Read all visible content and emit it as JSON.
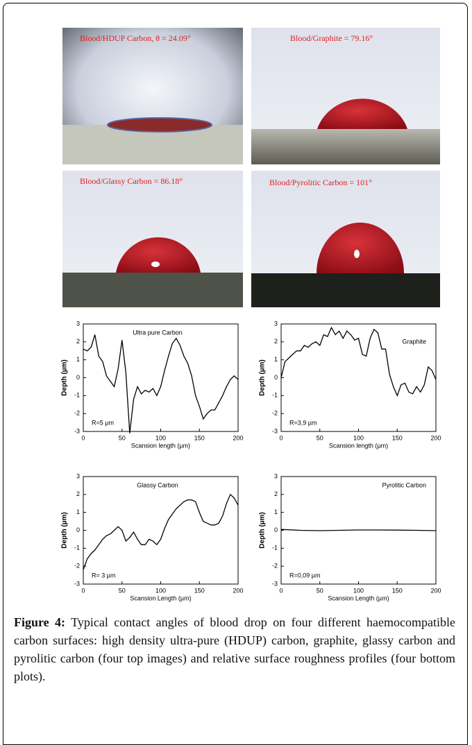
{
  "photos": [
    {
      "label": "Blood/HDUP Carbon, θ = 24.09°"
    },
    {
      "label": "Blood/Graphite = 79.16°"
    },
    {
      "label": "Blood/Glassy Carbon = 86.18°"
    },
    {
      "label": "Blood/Pyrolitic Carbon = 101°"
    }
  ],
  "chart_data": [
    {
      "type": "line",
      "title": "Ultra pure Carbon",
      "annotation": "R=5 µm",
      "y_label": "Depth (µm)",
      "x_label": "Scansion length (µm)",
      "xlim": [
        0,
        200
      ],
      "ylim": [
        -3,
        3
      ],
      "xticks": [
        0,
        50,
        100,
        150,
        200
      ],
      "yticks": [
        3,
        2,
        1,
        0,
        -1,
        -2,
        -3
      ],
      "color": "#000000",
      "x": [
        0,
        5,
        10,
        15,
        20,
        25,
        30,
        35,
        40,
        45,
        50,
        55,
        60,
        65,
        70,
        75,
        80,
        85,
        90,
        95,
        100,
        105,
        110,
        115,
        120,
        125,
        130,
        135,
        140,
        145,
        150,
        155,
        160,
        165,
        170,
        175,
        180,
        185,
        190,
        195,
        200
      ],
      "values": [
        1.6,
        1.5,
        1.7,
        2.4,
        1.2,
        0.9,
        0.1,
        -0.2,
        -0.5,
        0.5,
        2.1,
        0.3,
        -3.1,
        -1.2,
        -0.5,
        -0.9,
        -0.7,
        -0.8,
        -0.6,
        -1.0,
        -0.5,
        0.4,
        1.2,
        1.9,
        2.2,
        1.8,
        1.2,
        0.8,
        0.1,
        -1.0,
        -1.6,
        -2.3,
        -2.0,
        -1.8,
        -1.8,
        -1.4,
        -1.0,
        -0.5,
        -0.1,
        0.1,
        -0.1
      ]
    },
    {
      "type": "line",
      "title": "Graphite",
      "annotation": "R=3,9 µm",
      "y_label": "Depth (µm)",
      "x_label": "Scansion length (µm)",
      "xlim": [
        0,
        200
      ],
      "ylim": [
        -3,
        3
      ],
      "xticks": [
        0,
        50,
        100,
        150,
        200
      ],
      "yticks": [
        3,
        2,
        1,
        0,
        -1,
        -2,
        -3
      ],
      "color": "#000000",
      "x": [
        0,
        5,
        10,
        15,
        20,
        25,
        30,
        35,
        40,
        45,
        50,
        55,
        60,
        65,
        70,
        75,
        80,
        85,
        90,
        95,
        100,
        105,
        110,
        115,
        120,
        125,
        130,
        135,
        140,
        145,
        150,
        155,
        160,
        165,
        170,
        175,
        180,
        185,
        190,
        195,
        200
      ],
      "values": [
        0.0,
        0.9,
        1.1,
        1.3,
        1.5,
        1.5,
        1.8,
        1.7,
        1.9,
        2.0,
        1.8,
        2.4,
        2.3,
        2.8,
        2.4,
        2.6,
        2.2,
        2.6,
        2.4,
        2.1,
        2.2,
        1.3,
        1.2,
        2.2,
        2.7,
        2.5,
        1.6,
        1.6,
        0.2,
        -0.5,
        -1.0,
        -0.4,
        -0.3,
        -0.8,
        -0.9,
        -0.5,
        -0.8,
        -0.4,
        0.6,
        0.4,
        -0.1
      ]
    },
    {
      "type": "line",
      "title": "Glassy Carbon",
      "annotation": "R= 3 µm",
      "y_label": "Depth (µm)",
      "x_label": "Scansion Length (µm)",
      "xlim": [
        0,
        200
      ],
      "ylim": [
        -3,
        3
      ],
      "xticks": [
        0,
        50,
        100,
        150,
        200
      ],
      "yticks": [
        3,
        2,
        1,
        0,
        -1,
        -2,
        -3
      ],
      "color": "#000000",
      "x": [
        0,
        5,
        10,
        15,
        20,
        25,
        30,
        35,
        40,
        45,
        50,
        55,
        60,
        65,
        70,
        75,
        80,
        85,
        90,
        95,
        100,
        105,
        110,
        115,
        120,
        125,
        130,
        135,
        140,
        145,
        150,
        155,
        160,
        165,
        170,
        175,
        180,
        185,
        190,
        195,
        200
      ],
      "values": [
        -2.2,
        -1.6,
        -1.3,
        -1.1,
        -0.8,
        -0.5,
        -0.3,
        -0.2,
        0.0,
        0.2,
        0.0,
        -0.6,
        -0.4,
        -0.1,
        -0.5,
        -0.8,
        -0.8,
        -0.5,
        -0.6,
        -0.8,
        -0.5,
        0.1,
        0.6,
        0.9,
        1.2,
        1.4,
        1.6,
        1.7,
        1.7,
        1.6,
        1.0,
        0.5,
        0.4,
        0.3,
        0.3,
        0.4,
        0.8,
        1.5,
        2.0,
        1.8,
        1.4
      ]
    },
    {
      "type": "line",
      "title": "Pyrolitic Carbon",
      "annotation": "R=0,09 µm",
      "y_label": "Depth (µm)",
      "x_label": "Scansion Length (µm)",
      "xlim": [
        0,
        200
      ],
      "ylim": [
        -3,
        3
      ],
      "xticks": [
        0,
        50,
        100,
        150,
        200
      ],
      "yticks": [
        3,
        2,
        1,
        0,
        -1,
        -2,
        -3
      ],
      "color": "#000000",
      "x": [
        0,
        25,
        50,
        75,
        100,
        125,
        150,
        175,
        200
      ],
      "values": [
        0.05,
        0.0,
        -0.02,
        0.0,
        0.02,
        0.02,
        0.01,
        0.0,
        -0.02
      ]
    }
  ],
  "caption": {
    "label": "Figure 4:",
    "text": "Typical contact angles of blood drop on four different haemocompatible carbon surfaces: high density ultra-pure (HDUP) carbon, graphite, glassy carbon and pyrolitic carbon (four top images) and relative surface roughness profiles (four bottom plots)."
  }
}
